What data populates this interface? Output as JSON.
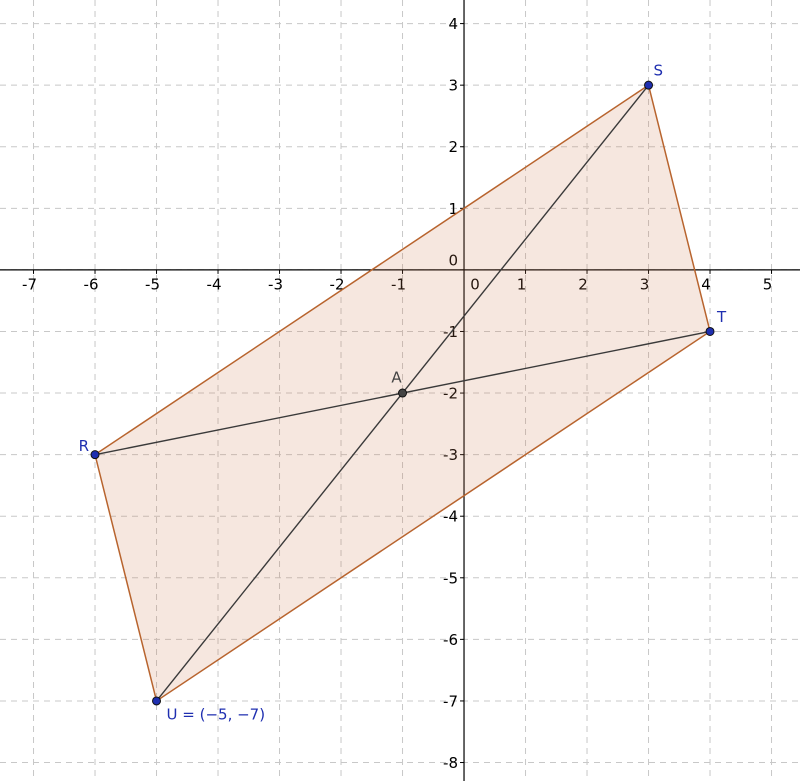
{
  "chart_data": {
    "type": "geometry",
    "xlim": [
      -7.545,
      5.463
    ],
    "ylim": [
      -8.3,
      4.383
    ],
    "xticks": [
      -7,
      -6,
      -5,
      -4,
      -3,
      -2,
      -1,
      0,
      1,
      2,
      3,
      4,
      5
    ],
    "yticks": [
      -8,
      -7,
      -6,
      -5,
      -4,
      -3,
      -2,
      -1,
      0,
      1,
      2,
      3,
      4
    ],
    "grid": true,
    "polygon_color": "#b8642e",
    "polygon_fill": "rgba(205,120,80,0.18)",
    "segment_color": "#3a3a3a",
    "points": [
      {
        "label": "R",
        "x": -6,
        "y": -3,
        "color": "#1f2fb0"
      },
      {
        "label": "S",
        "x": 3,
        "y": 3,
        "color": "#1f2fb0"
      },
      {
        "label": "T",
        "x": 4,
        "y": -1,
        "color": "#1f2fb0"
      },
      {
        "label": "U = (−5, −7)",
        "x": -5,
        "y": -7,
        "color": "#1f2fb0"
      },
      {
        "label": "A",
        "x": -1,
        "y": -2,
        "color": "#444444"
      }
    ]
  }
}
